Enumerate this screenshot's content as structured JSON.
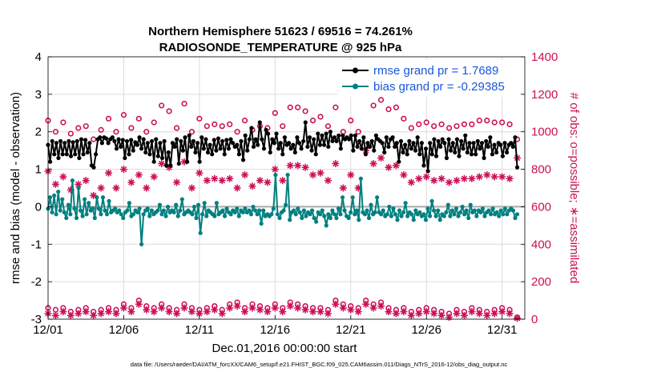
{
  "chart_data": {
    "type": "line",
    "title": "Northern Hemisphere 51623 / 69516 = 74.261%",
    "subtitle": "RADIOSONDE_TEMPERATURE @ 925 hPa",
    "xlabel": "Dec.01,2016 00:00:00 start",
    "ylabel": "rmse and bias (model - observation)",
    "ylabel_right": "# of obs: o=possible; ∗=assimilated",
    "footer": "data file: /Users/raeder/DAI/ATM_forcXX/CAM6_setup/f.e21.FHIST_BGC.f09_025.CAM6assim.011/Diags_NTrS_2016-12/obs_diag_output.nc",
    "xlim": [
      0,
      31.5
    ],
    "ylim": [
      -3,
      4
    ],
    "ylim_right": [
      0,
      1400
    ],
    "x_ticks": [
      0,
      5,
      10,
      15,
      20,
      25,
      30
    ],
    "x_tick_labels": [
      "12/01",
      "12/06",
      "12/11",
      "12/16",
      "12/21",
      "12/26",
      "12/31"
    ],
    "y_ticks": [
      -3,
      -2,
      -1,
      0,
      1,
      2,
      3,
      4
    ],
    "y_tick_labels": [
      "-3",
      "-2",
      "-1",
      "0",
      "1",
      "2",
      "3",
      "4"
    ],
    "y_right_ticks": [
      0,
      200,
      400,
      600,
      800,
      1000,
      1200,
      1400
    ],
    "y_right_tick_labels": [
      "0",
      "200",
      "400",
      "600",
      "800",
      "1000",
      "1200",
      "1400"
    ],
    "legend_position": "top-right",
    "colors": {
      "rmse": "#000000",
      "bias": "#008080",
      "obs": "#cc0f55",
      "zero_line": "#aaaaaa",
      "grid": "#dcdcdc",
      "legend_text": "#1a56db"
    },
    "series": [
      {
        "name": "rmse grand pr = 1.7689",
        "axis": "left",
        "values": [
          1.65,
          1.2,
          1.75,
          1.4,
          1.7,
          1.3,
          1.75,
          1.4,
          1.7,
          1.4,
          1.75,
          1.35,
          1.72,
          1.4,
          1.75,
          1.3,
          1.8,
          1.4,
          1.78,
          1.45,
          1.7,
          1.1,
          1.05,
          1.4,
          1.8,
          1.85,
          1.7,
          1.85,
          1.82,
          1.7,
          1.8,
          1.85,
          1.75,
          1.55,
          1.8,
          1.6,
          1.78,
          1.3,
          1.75,
          1.4,
          1.78,
          1.5,
          1.72,
          1.65,
          1.85,
          1.55,
          1.8,
          1.45,
          1.7,
          1.4,
          1.75,
          1.2,
          1.8,
          1.35,
          1.7,
          1.3,
          1.75,
          1.1,
          1.45,
          1.1,
          1.7,
          1.6,
          1.8,
          1.15,
          1.75,
          1.5,
          1.85,
          1.2,
          1.9,
          1.6,
          1.75,
          1.45,
          1.7,
          1.2,
          1.85,
          1.55,
          1.8,
          1.45,
          1.65,
          1.4,
          1.78,
          1.5,
          1.82,
          1.55,
          1.75,
          1.4,
          1.78,
          1.55,
          1.8,
          1.7,
          1.6,
          1.65,
          1.4,
          1.75,
          1.25,
          1.9,
          1.5,
          1.8,
          2.1,
          1.6,
          1.8,
          1.65,
          2.25,
          1.8,
          1.55,
          2.05,
          1.95,
          1.45,
          1.8,
          1.7,
          1.95,
          1.55,
          1.7,
          1.4,
          1.85,
          1.65,
          1.7,
          1.55,
          1.65,
          1.45,
          1.85,
          1.7,
          1.55,
          1.75,
          2.25,
          1.6,
          1.85,
          1.5,
          1.8,
          1.4,
          1.95,
          1.65,
          1.9,
          1.65,
          1.95,
          1.6,
          2.0,
          1.75,
          1.85,
          1.75,
          1.9,
          1.55,
          1.9,
          1.8,
          1.85,
          1.8,
          1.9,
          1.5,
          1.9,
          1.6,
          1.75,
          1.55,
          1.85,
          1.4,
          1.7,
          1.6,
          1.75,
          1.5,
          1.9,
          1.8,
          1.75,
          1.7,
          1.45,
          1.85,
          1.6,
          1.8,
          1.85,
          1.6,
          1.7,
          1.2,
          1.75,
          1.45,
          1.65,
          1.4,
          1.75,
          1.55,
          1.7,
          1.5,
          1.85,
          1.4,
          1.7,
          1.1,
          1.55,
          0.95,
          1.7,
          1.4,
          1.8,
          1.35,
          1.75,
          1.6,
          1.8,
          1.7,
          1.3,
          1.8,
          1.5,
          1.7,
          1.45,
          1.8,
          1.35,
          1.75,
          1.55,
          1.9,
          1.45,
          1.7,
          1.4,
          1.7,
          1.4,
          1.75,
          1.55,
          1.7,
          1.3,
          1.75,
          1.6,
          1.85,
          1.4,
          1.65,
          1.45,
          1.7,
          1.65,
          1.35,
          1.7,
          1.45,
          1.65,
          1.7,
          1.6,
          1.85,
          1.05
        ]
      },
      {
        "name": "bias grand pr = -0.29385",
        "axis": "left",
        "values": [
          -0.05,
          0.25,
          -0.15,
          0.3,
          -0.2,
          0.4,
          -0.1,
          0.2,
          -0.15,
          -0.3,
          0.05,
          -0.2,
          0.7,
          -0.05,
          -0.3,
          0.5,
          -0.1,
          -0.25,
          0.2,
          -0.2,
          0.1,
          -0.1,
          -0.05,
          -0.3,
          0.25,
          -0.05,
          -0.2,
          0.25,
          -0.1,
          -0.2,
          0.15,
          -0.15,
          -0.1,
          -0.05,
          -0.15,
          -0.1,
          -0.2,
          -0.3,
          -0.15,
          -0.1,
          0.1,
          -0.25,
          -0.2,
          -0.1,
          -0.15,
          -0.05,
          -1.0,
          -0.2,
          -0.1,
          -0.05,
          -0.25,
          -0.1,
          -0.2,
          -0.15,
          -0.1,
          0.05,
          -0.2,
          -0.1,
          -0.25,
          0.0,
          -0.15,
          -0.1,
          -0.15,
          0.05,
          -0.25,
          -0.1,
          0.2,
          -0.2,
          -0.15,
          -0.1,
          -0.15,
          -0.2,
          0.0,
          -0.3,
          0.05,
          -0.7,
          -0.2,
          0.1,
          -0.25,
          -0.1,
          -0.15,
          -0.2,
          -0.25,
          0.1,
          -0.2,
          -0.15,
          -0.1,
          -0.25,
          -0.05,
          -0.15,
          -0.2,
          -0.1,
          -0.15,
          -0.05,
          -0.25,
          -0.1,
          -0.15,
          -0.05,
          -0.15,
          -0.1,
          -0.2,
          0.0,
          -0.1,
          -0.2,
          -0.1,
          -0.45,
          -0.1,
          -0.25,
          -0.2,
          -0.25,
          -0.2,
          -0.05,
          0.85,
          -0.2,
          -0.3,
          -0.15,
          -0.1,
          0.05,
          0.85,
          -0.35,
          -0.15,
          -0.1,
          -0.2,
          -0.05,
          -0.15,
          -0.3,
          -0.1,
          -0.25,
          -0.15,
          -0.2,
          -0.1,
          -0.3,
          -0.4,
          -0.15,
          -0.2,
          -0.1,
          -0.25,
          -0.5,
          -0.2,
          -0.3,
          -0.1,
          -0.2,
          -0.3,
          -0.05,
          -0.2,
          0.25,
          -0.1,
          -0.25,
          -0.3,
          -0.15,
          0.25,
          -0.2,
          -0.1,
          -0.35,
          0.75,
          -0.15,
          -0.2,
          -0.1,
          -0.3,
          0.05,
          -0.2,
          -0.15,
          0.25,
          -0.15,
          -0.2,
          -0.1,
          -0.25,
          -0.2,
          0.0,
          -0.25,
          -0.05,
          -0.2,
          -0.35,
          -0.1,
          -0.25,
          -0.15,
          0.1,
          -0.25,
          -0.15,
          -0.2,
          -0.35,
          -0.1,
          -0.2,
          -0.15,
          -0.25,
          -0.2,
          -0.35,
          -0.05,
          -0.25,
          0.15,
          -0.1,
          -0.25,
          -0.1,
          -0.35,
          -0.2,
          -0.25,
          -0.15,
          0.05,
          -0.25,
          -0.1,
          -0.2,
          -0.05,
          -0.25,
          -0.15,
          0.0,
          -0.2,
          -0.1,
          -0.3,
          0.05,
          -0.15,
          -0.1,
          -0.25,
          -0.1,
          -0.15,
          -0.05,
          -0.25,
          -0.15,
          -0.1,
          -0.2,
          -0.05,
          -0.2,
          -0.15,
          -0.25,
          -0.1,
          -0.2,
          -0.05,
          -0.2,
          -0.1,
          -0.05,
          -0.1,
          -0.3,
          -0.2
        ]
      },
      {
        "name": "possible obs (o)",
        "axis": "right",
        "x": [
          0,
          0.5,
          1,
          1.5,
          2,
          2.5,
          3,
          3.5,
          4,
          4.5,
          5,
          5.5,
          6,
          6.5,
          7,
          7.5,
          8,
          8.5,
          9,
          9.5,
          10,
          10.5,
          11,
          11.5,
          12,
          12.5,
          13,
          13.5,
          14,
          14.5,
          15,
          15.5,
          16,
          16.5,
          17,
          17.5,
          18,
          18.5,
          19,
          19.5,
          20,
          20.5,
          21,
          21.5,
          22,
          22.5,
          23,
          23.5,
          24,
          24.5,
          25,
          25.5,
          26,
          26.5,
          27,
          27.5,
          28,
          28.5,
          29,
          29.5,
          30,
          30.5,
          31
        ],
        "values": [
          1060,
          1000,
          1050,
          990,
          1020,
          1030,
          960,
          1010,
          1070,
          1000,
          1090,
          1020,
          1070,
          1000,
          1050,
          1140,
          1110,
          1020,
          1150,
          1000,
          1070,
          1030,
          1040,
          1030,
          1040,
          1000,
          1060,
          1010,
          1030,
          1020,
          1100,
          1030,
          1130,
          1130,
          1110,
          1060,
          1080,
          1030,
          1130,
          1000,
          1060,
          1000,
          1210,
          1140,
          1170,
          1120,
          1130,
          1070,
          1020,
          1040,
          1050,
          1030,
          1040,
          1020,
          1030,
          1040,
          1040,
          1060,
          1060,
          1050,
          1050,
          1040,
          960
        ]
      },
      {
        "name": "possible obs (o) synoptic minimum",
        "axis": "right",
        "x": [
          0,
          0.5,
          1,
          1.5,
          2,
          2.5,
          3,
          3.5,
          4,
          4.5,
          5,
          5.5,
          6,
          6.5,
          7,
          7.5,
          8,
          8.5,
          9,
          9.5,
          10,
          10.5,
          11,
          11.5,
          12,
          12.5,
          13,
          13.5,
          14,
          14.5,
          15,
          15.5,
          16,
          16.5,
          17,
          17.5,
          18,
          18.5,
          19,
          19.5,
          20,
          20.5,
          21,
          21.5,
          22,
          22.5,
          23,
          23.5,
          24,
          24.5,
          25,
          25.5,
          26,
          26.5,
          27,
          27.5,
          28,
          28.5,
          29,
          29.5,
          30,
          30.5,
          31
        ],
        "values": [
          60,
          50,
          60,
          40,
          50,
          60,
          40,
          50,
          60,
          50,
          80,
          60,
          100,
          70,
          60,
          80,
          60,
          50,
          80,
          60,
          50,
          60,
          70,
          50,
          80,
          90,
          60,
          80,
          70,
          60,
          80,
          60,
          90,
          80,
          70,
          60,
          60,
          50,
          100,
          80,
          70,
          60,
          100,
          80,
          90,
          60,
          50,
          60,
          40,
          50,
          60,
          50,
          40,
          30,
          50,
          40,
          60,
          50,
          40,
          50,
          60,
          50,
          10
        ]
      },
      {
        "name": "assimilated obs (∗)",
        "axis": "right",
        "x": [
          0,
          0.5,
          1,
          1.5,
          2,
          2.5,
          3,
          3.5,
          4,
          4.5,
          5,
          5.5,
          6,
          6.5,
          7,
          7.5,
          8,
          8.5,
          9,
          9.5,
          10,
          10.5,
          11,
          11.5,
          12,
          12.5,
          13,
          13.5,
          14,
          14.5,
          15,
          15.5,
          16,
          16.5,
          17,
          17.5,
          18,
          18.5,
          19,
          19.5,
          20,
          20.5,
          21,
          21.5,
          22,
          22.5,
          23,
          23.5,
          24,
          24.5,
          25,
          25.5,
          26,
          26.5,
          27,
          27.5,
          28,
          28.5,
          29,
          29.5,
          30,
          30.5,
          31
        ],
        "values": [
          790,
          720,
          760,
          690,
          720,
          740,
          660,
          700,
          780,
          700,
          800,
          730,
          770,
          700,
          760,
          830,
          810,
          730,
          840,
          700,
          780,
          740,
          750,
          740,
          750,
          700,
          770,
          710,
          740,
          730,
          800,
          740,
          820,
          820,
          810,
          770,
          780,
          740,
          830,
          700,
          770,
          700,
          900,
          830,
          860,
          810,
          820,
          770,
          730,
          750,
          760,
          740,
          750,
          730,
          740,
          750,
          750,
          760,
          770,
          760,
          760,
          750,
          860
        ]
      },
      {
        "name": "assimilated obs (∗) synoptic minimum",
        "axis": "right",
        "x": [
          0,
          0.5,
          1,
          1.5,
          2,
          2.5,
          3,
          3.5,
          4,
          4.5,
          5,
          5.5,
          6,
          6.5,
          7,
          7.5,
          8,
          8.5,
          9,
          9.5,
          10,
          10.5,
          11,
          11.5,
          12,
          12.5,
          13,
          13.5,
          14,
          14.5,
          15,
          15.5,
          16,
          16.5,
          17,
          17.5,
          18,
          18.5,
          19,
          19.5,
          20,
          20.5,
          21,
          21.5,
          22,
          22.5,
          23,
          23.5,
          24,
          24.5,
          25,
          25.5,
          26,
          26.5,
          27,
          27.5,
          28,
          28.5,
          29,
          29.5,
          30,
          30.5,
          31
        ],
        "values": [
          30,
          20,
          40,
          20,
          30,
          40,
          20,
          30,
          40,
          30,
          60,
          40,
          80,
          50,
          40,
          60,
          40,
          30,
          60,
          40,
          30,
          40,
          50,
          30,
          60,
          70,
          40,
          60,
          50,
          40,
          60,
          40,
          70,
          60,
          50,
          40,
          40,
          30,
          80,
          60,
          50,
          40,
          80,
          60,
          70,
          40,
          30,
          40,
          20,
          30,
          40,
          30,
          20,
          10,
          30,
          20,
          40,
          30,
          20,
          30,
          40,
          30,
          5
        ]
      }
    ]
  }
}
